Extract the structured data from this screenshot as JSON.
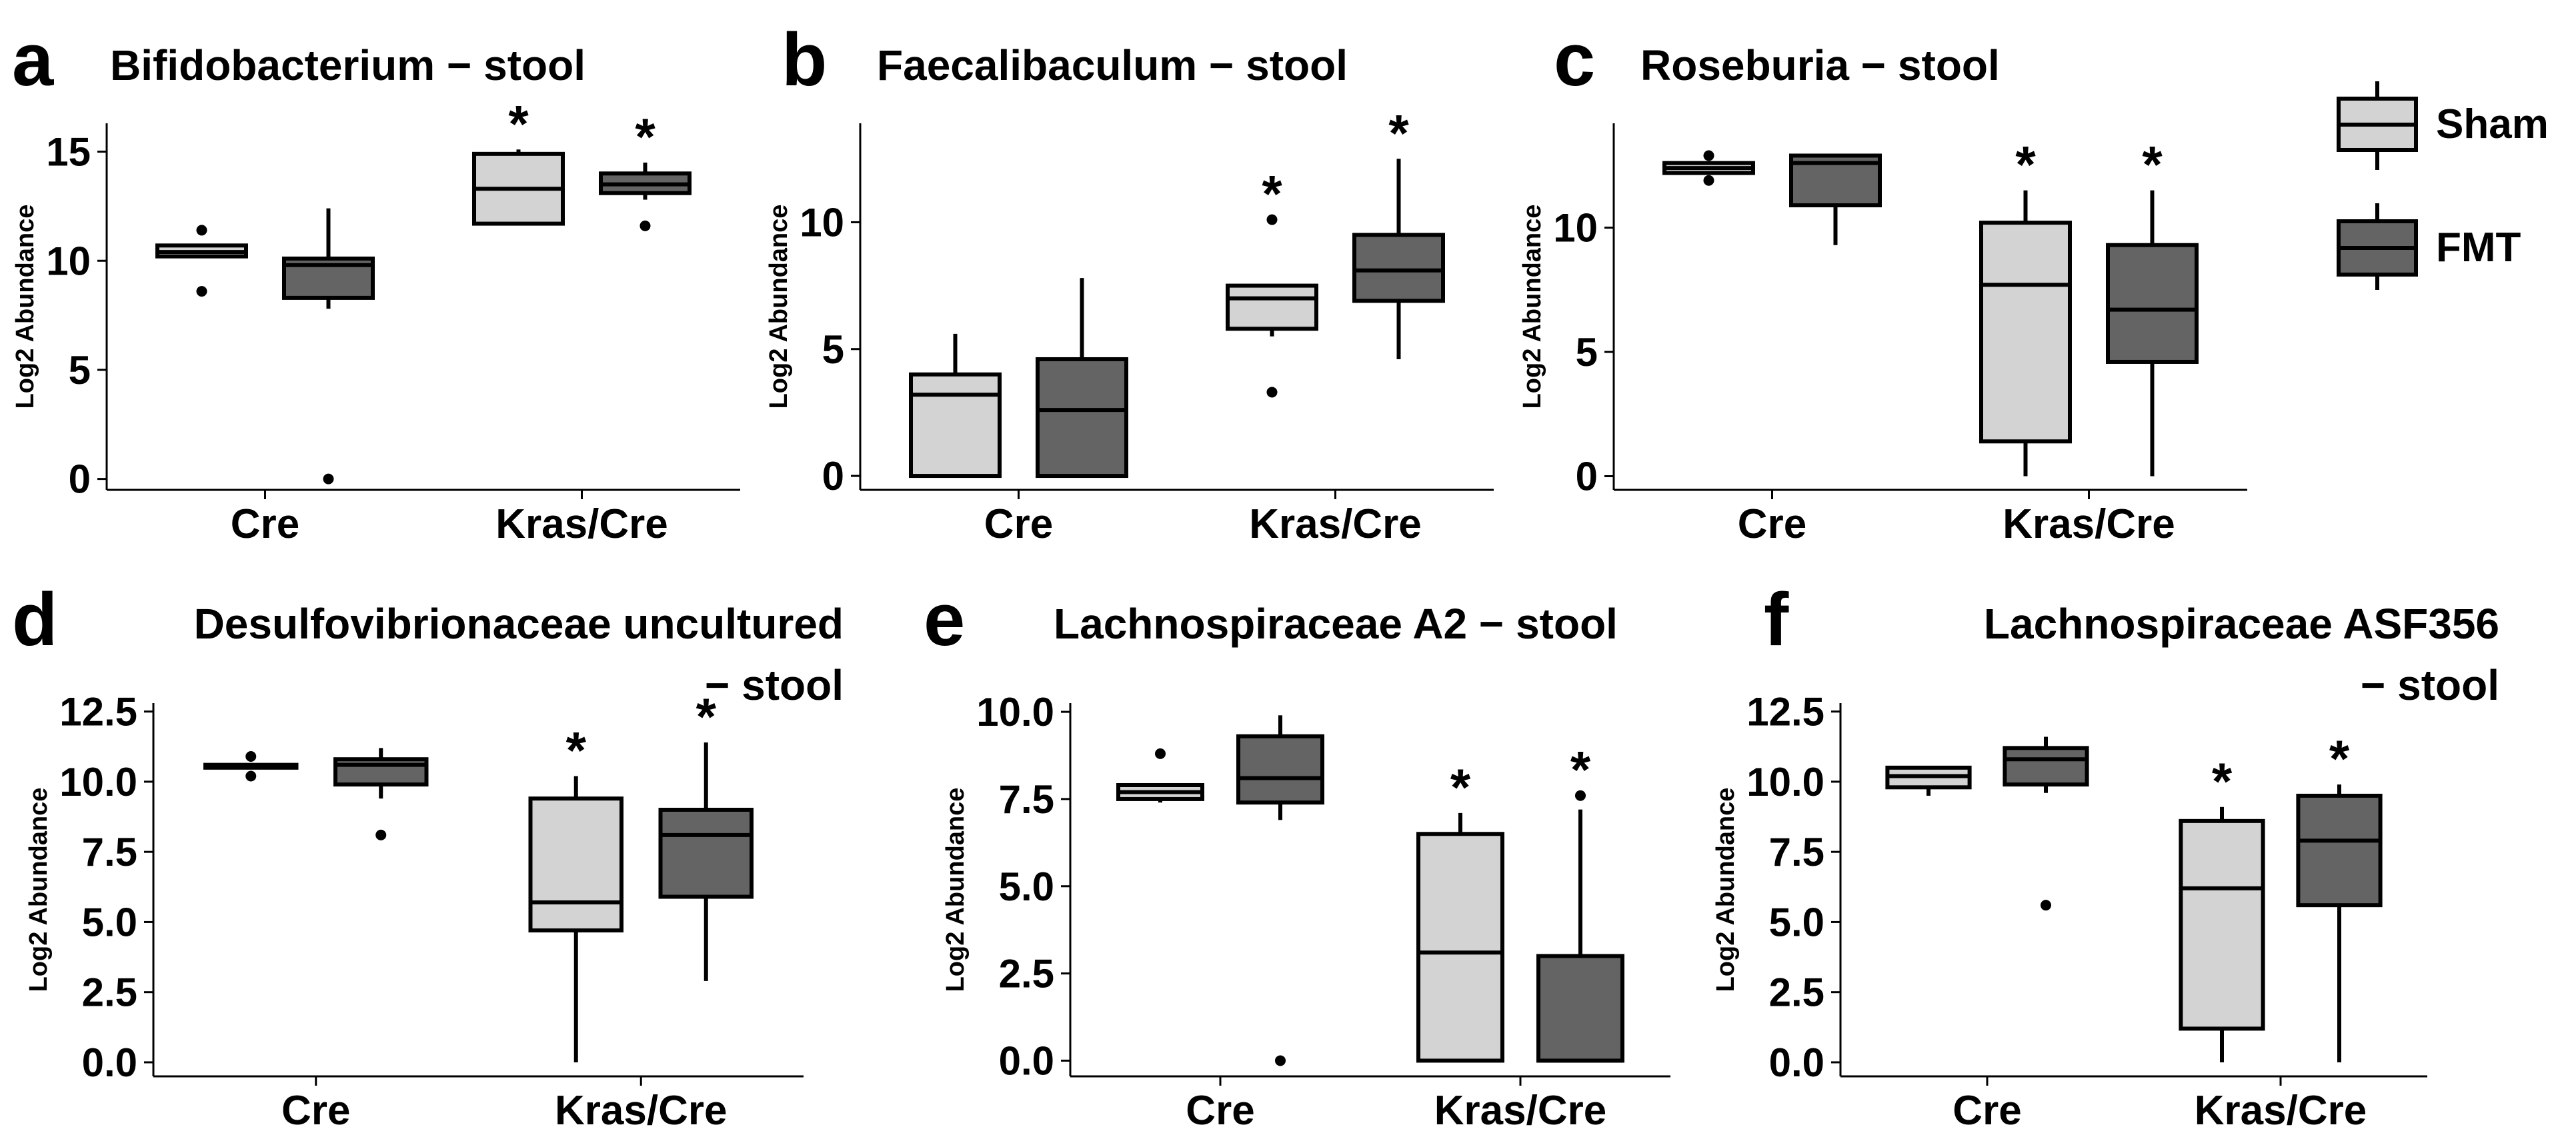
{
  "legend": {
    "items": [
      {
        "label": "Sham",
        "color": "#d3d3d3"
      },
      {
        "label": "FMT",
        "color": "#646464"
      }
    ]
  },
  "chart_data": [
    {
      "panel": "a",
      "type": "box",
      "title": [
        "Bifidobacterium − stool"
      ],
      "ylabel": "Log2 Abundance",
      "categories": [
        "Cre",
        "Kras/Cre"
      ],
      "ylim": [
        -0.5,
        16.3
      ],
      "yticks": [
        0,
        5,
        10,
        15
      ],
      "ytick_labels": [
        "0",
        "5",
        "10",
        "15"
      ],
      "series": [
        {
          "name": "Sham",
          "boxes": [
            {
              "q1": 10.2,
              "median": 10.4,
              "q3": 10.7,
              "whisker_low": 10.2,
              "whisker_high": 10.7,
              "outliers": [
                11.4,
                8.6
              ],
              "star": false
            },
            {
              "q1": 11.7,
              "median": 13.3,
              "q3": 14.9,
              "whisker_low": 11.7,
              "whisker_high": 15.1,
              "outliers": [],
              "star": true
            }
          ]
        },
        {
          "name": "FMT",
          "boxes": [
            {
              "q1": 8.3,
              "median": 9.8,
              "q3": 10.1,
              "whisker_low": 7.8,
              "whisker_high": 12.4,
              "outliers": [
                0
              ],
              "star": false
            },
            {
              "q1": 13.1,
              "median": 13.5,
              "q3": 14.0,
              "whisker_low": 12.8,
              "whisker_high": 14.5,
              "outliers": [
                11.6
              ],
              "star": true
            }
          ]
        }
      ]
    },
    {
      "panel": "b",
      "type": "box",
      "title": [
        "Faecalibaculum − stool"
      ],
      "ylabel": "Log2 Abundance",
      "categories": [
        "Cre",
        "Kras/Cre"
      ],
      "ylim": [
        -0.55,
        13.9
      ],
      "yticks": [
        0,
        5,
        10
      ],
      "ytick_labels": [
        "0",
        "5",
        "10"
      ],
      "series": [
        {
          "name": "Sham",
          "boxes": [
            {
              "q1": 0,
              "median": 3.2,
              "q3": 4.0,
              "whisker_low": 0,
              "whisker_high": 5.6,
              "outliers": [],
              "star": false
            },
            {
              "q1": 5.8,
              "median": 7.0,
              "q3": 7.5,
              "whisker_low": 5.5,
              "whisker_high": 7.5,
              "outliers": [
                10.1,
                3.3
              ],
              "star": true
            }
          ]
        },
        {
          "name": "FMT",
          "boxes": [
            {
              "q1": 0,
              "median": 2.6,
              "q3": 4.6,
              "whisker_low": 0,
              "whisker_high": 7.8,
              "outliers": [],
              "star": false
            },
            {
              "q1": 6.9,
              "median": 8.1,
              "q3": 9.5,
              "whisker_low": 4.6,
              "whisker_high": 12.5,
              "outliers": [],
              "star": true
            }
          ]
        }
      ]
    },
    {
      "panel": "c",
      "type": "box",
      "title": [
        "Roseburia − stool"
      ],
      "ylabel": "Log2 Abundance",
      "categories": [
        "Cre",
        "Kras/Cre"
      ],
      "ylim": [
        -0.55,
        14.2
      ],
      "yticks": [
        0,
        5,
        10
      ],
      "ytick_labels": [
        "0",
        "5",
        "10"
      ],
      "series": [
        {
          "name": "Sham",
          "boxes": [
            {
              "q1": 12.2,
              "median": 12.4,
              "q3": 12.6,
              "whisker_low": 12.2,
              "whisker_high": 12.6,
              "outliers": [
                12.9,
                11.9
              ],
              "star": false
            },
            {
              "q1": 1.4,
              "median": 7.7,
              "q3": 10.2,
              "whisker_low": 0,
              "whisker_high": 11.5,
              "outliers": [],
              "star": true
            }
          ]
        },
        {
          "name": "FMT",
          "boxes": [
            {
              "q1": 10.9,
              "median": 12.6,
              "q3": 12.9,
              "whisker_low": 9.3,
              "whisker_high": 12.9,
              "outliers": [],
              "star": false
            },
            {
              "q1": 4.6,
              "median": 6.7,
              "q3": 9.3,
              "whisker_low": 0,
              "whisker_high": 11.5,
              "outliers": [],
              "star": true
            }
          ]
        }
      ]
    },
    {
      "panel": "d",
      "type": "box",
      "title": [
        "Desulfovibrionaceae uncultured",
        "− stool"
      ],
      "ylabel": "Log2 Abundance",
      "categories": [
        "Cre",
        "Kras/Cre"
      ],
      "ylim": [
        -0.5,
        12.8
      ],
      "yticks": [
        0,
        2.5,
        5,
        7.5,
        10,
        12.5
      ],
      "ytick_labels": [
        "0.0",
        "2.5",
        "5.0",
        "7.5",
        "10.0",
        "12.5"
      ],
      "series": [
        {
          "name": "Sham",
          "boxes": [
            {
              "q1": 10.5,
              "median": 10.55,
              "q3": 10.6,
              "whisker_low": 10.5,
              "whisker_high": 10.6,
              "outliers": [
                10.9,
                10.2
              ],
              "star": false
            },
            {
              "q1": 4.7,
              "median": 5.7,
              "q3": 9.4,
              "whisker_low": 0,
              "whisker_high": 10.2,
              "outliers": [],
              "star": true
            }
          ]
        },
        {
          "name": "FMT",
          "boxes": [
            {
              "q1": 9.9,
              "median": 10.6,
              "q3": 10.8,
              "whisker_low": 9.4,
              "whisker_high": 11.2,
              "outliers": [
                8.1
              ],
              "star": false
            },
            {
              "q1": 5.9,
              "median": 8.1,
              "q3": 9.0,
              "whisker_low": 2.9,
              "whisker_high": 11.4,
              "outliers": [],
              "star": true
            }
          ]
        }
      ]
    },
    {
      "panel": "e",
      "type": "box",
      "title": [
        "Lachnospiraceae A2 − stool"
      ],
      "ylabel": "Log2 Abundance",
      "categories": [
        "Cre",
        "Kras/Cre"
      ],
      "ylim": [
        -0.45,
        10.25
      ],
      "yticks": [
        0,
        2.5,
        5,
        7.5,
        10
      ],
      "ytick_labels": [
        "0.0",
        "2.5",
        "5.0",
        "7.5",
        "10.0"
      ],
      "series": [
        {
          "name": "Sham",
          "boxes": [
            {
              "q1": 7.5,
              "median": 7.7,
              "q3": 7.9,
              "whisker_low": 7.4,
              "whisker_high": 7.9,
              "outliers": [
                8.8
              ],
              "star": false
            },
            {
              "q1": 0,
              "median": 3.1,
              "q3": 6.5,
              "whisker_low": 0,
              "whisker_high": 7.1,
              "outliers": [],
              "star": true
            }
          ]
        },
        {
          "name": "FMT",
          "boxes": [
            {
              "q1": 7.4,
              "median": 8.1,
              "q3": 9.3,
              "whisker_low": 6.9,
              "whisker_high": 9.9,
              "outliers": [
                0
              ],
              "star": false
            },
            {
              "q1": 0,
              "median": 0,
              "q3": 3.0,
              "whisker_low": 0,
              "whisker_high": 7.2,
              "outliers": [
                7.6
              ],
              "star": true
            }
          ]
        }
      ]
    },
    {
      "panel": "f",
      "type": "box",
      "title": [
        "Lachnospiraceae ASF356",
        "− stool"
      ],
      "ylabel": "Log2 Abundance",
      "categories": [
        "Cre",
        "Kras/Cre"
      ],
      "ylim": [
        -0.5,
        12.8
      ],
      "yticks": [
        0,
        2.5,
        5,
        7.5,
        10,
        12.5
      ],
      "ytick_labels": [
        "0.0",
        "2.5",
        "5.0",
        "7.5",
        "10.0",
        "12.5"
      ],
      "series": [
        {
          "name": "Sham",
          "boxes": [
            {
              "q1": 9.8,
              "median": 10.2,
              "q3": 10.5,
              "whisker_low": 9.5,
              "whisker_high": 10.5,
              "outliers": [],
              "star": false
            },
            {
              "q1": 1.2,
              "median": 6.2,
              "q3": 8.6,
              "whisker_low": 0,
              "whisker_high": 9.1,
              "outliers": [],
              "star": true
            }
          ]
        },
        {
          "name": "FMT",
          "boxes": [
            {
              "q1": 9.9,
              "median": 10.8,
              "q3": 11.2,
              "whisker_low": 9.6,
              "whisker_high": 11.6,
              "outliers": [
                5.6
              ],
              "star": false
            },
            {
              "q1": 5.6,
              "median": 7.9,
              "q3": 9.5,
              "whisker_low": 0,
              "whisker_high": 9.9,
              "outliers": [],
              "star": true
            }
          ]
        }
      ]
    }
  ]
}
